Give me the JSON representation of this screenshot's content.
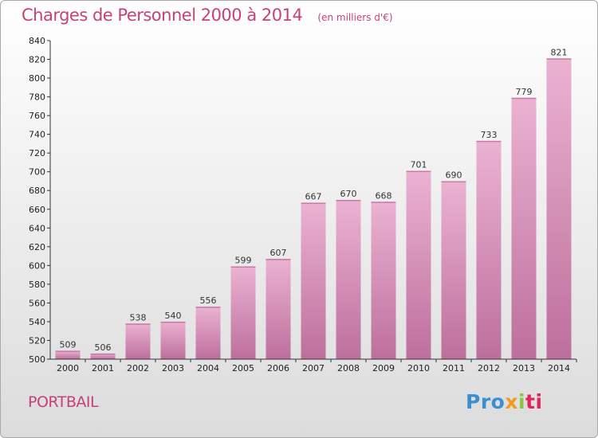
{
  "chart_data": {
    "type": "bar",
    "title": "Charges de Personnel 2000 à 2014",
    "subtitle": "(en milliers d'€)",
    "xlabel": "",
    "ylabel": "",
    "categories": [
      "2000",
      "2001",
      "2002",
      "2003",
      "2004",
      "2005",
      "2006",
      "2007",
      "2008",
      "2009",
      "2010",
      "2011",
      "2012",
      "2013",
      "2014"
    ],
    "values": [
      509,
      506,
      538,
      540,
      556,
      599,
      607,
      667,
      670,
      668,
      701,
      690,
      733,
      779,
      821
    ],
    "ylim": [
      500,
      840
    ],
    "yticks": [
      500,
      520,
      540,
      560,
      580,
      600,
      620,
      640,
      660,
      680,
      700,
      720,
      740,
      760,
      780,
      800,
      820,
      840
    ],
    "grid": false,
    "colors": {
      "bar_light": "#ebb2d2",
      "bar_dark": "#bd6f9c",
      "title": "#c7407a"
    }
  },
  "footer": {
    "city": "PORTBAIL",
    "logo_parts": [
      "Pro",
      "x",
      "i",
      "ti"
    ]
  }
}
